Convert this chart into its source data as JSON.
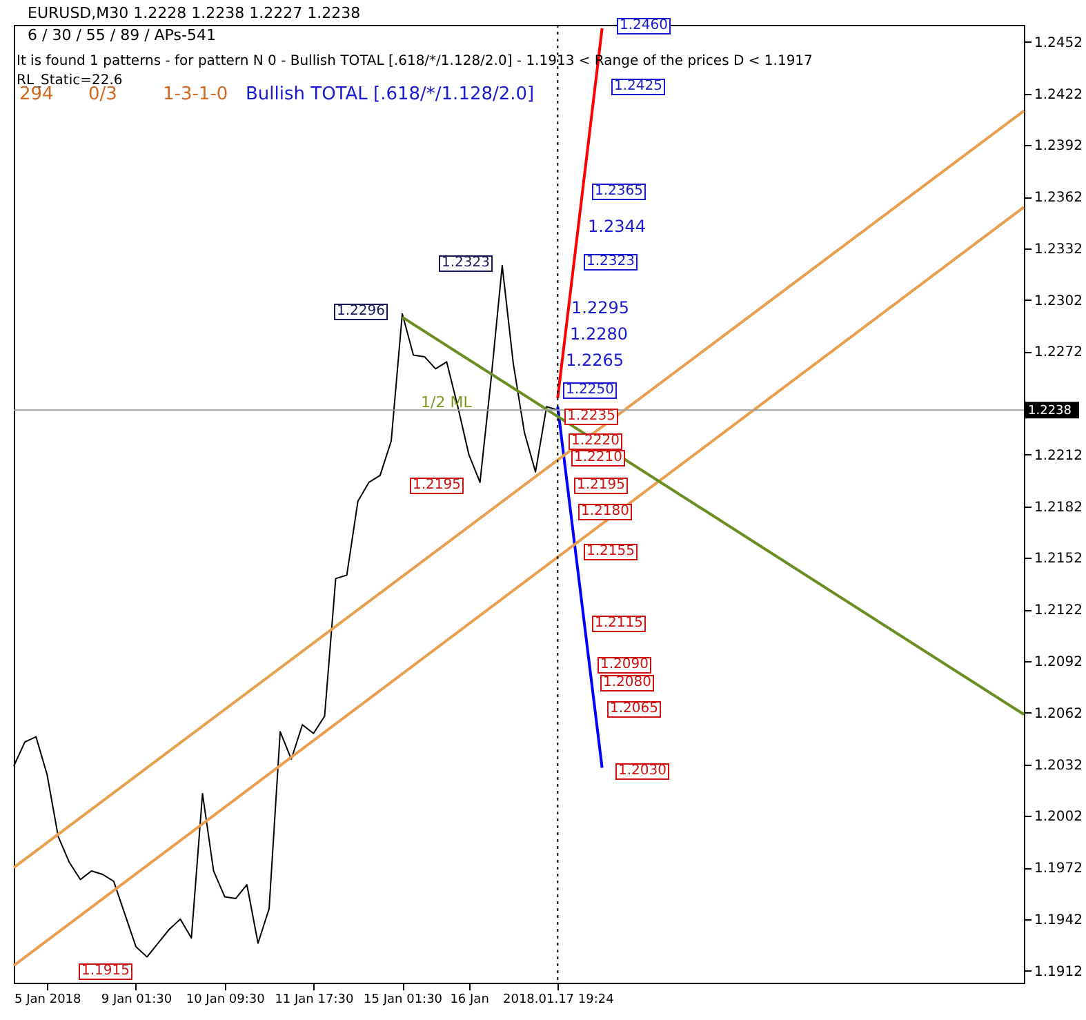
{
  "chart_data": {
    "type": "line",
    "title": "EURUSD,M30  1.2228 1.2238 1.2227 1.2238",
    "subtitle": "6 / 30 / 55 / 89 / APs-541",
    "annotations": [
      "It is found 1 patterns  -  for pattern N 0 - Bullish TOTAL [.618/*/1.128/2.0] - 1.1913 < Range of the prices D < 1.1917",
      "RL_Static=22.6",
      "294",
      "0/3",
      "1-3-1-0",
      "Bullish TOTAL [.618/*/1.128/2.0]",
      "1.2460",
      "1.2425",
      "1.2365",
      "1.2344",
      "1.2323",
      "1.2295",
      "1.2280",
      "1.2265",
      "1.2250",
      "1.2235",
      "1.2220",
      "1.2210",
      "1.2195",
      "1.2180",
      "1.2155",
      "1.2115",
      "1.2090",
      "1.2080",
      "1.2065",
      "1.2030",
      "1.2296",
      "1.2323",
      "1.2195",
      "1.1915",
      "1/2 ML"
    ],
    "categories": [
      null,
      null,
      null,
      "5 Jan 2018",
      null,
      null,
      null,
      null,
      null,
      null,
      null,
      "9 Jan 01:30",
      null,
      null,
      null,
      null,
      null,
      null,
      null,
      "10 Jan 09:30",
      null,
      null,
      null,
      null,
      null,
      null,
      null,
      "11 Jan 17:30",
      null,
      null,
      null,
      null,
      null,
      null,
      null,
      "15 Jan 01:30",
      null,
      null,
      null,
      null,
      null,
      "16 Jan",
      null,
      null,
      null,
      null,
      null,
      null,
      null,
      "2018.01.17 19:24",
      null,
      null,
      null,
      null,
      null,
      null,
      null,
      null,
      null,
      null,
      null,
      null,
      null,
      null,
      null,
      null,
      null,
      null,
      null,
      null,
      null,
      null,
      null,
      null,
      null,
      null,
      null,
      null,
      null,
      null,
      null,
      null,
      null,
      null,
      null,
      null,
      null,
      null,
      null,
      null,
      null,
      null
    ],
    "ylim": [
      1.1905,
      1.2462
    ],
    "yticks": [
      1.1912,
      1.1942,
      1.1972,
      1.2002,
      1.2032,
      1.2062,
      1.2092,
      1.2122,
      1.2152,
      1.2182,
      1.2212,
      1.2272,
      1.2302,
      1.2332,
      1.2362,
      1.2392,
      1.2422,
      1.2452
    ],
    "ref_lines": [
      {
        "axis": "y",
        "value": 1.2238,
        "label": "1.2238",
        "color": "#a0a0a0"
      },
      {
        "axis": "x",
        "value": "2018.01.17 19:24",
        "color": "#000000",
        "line_style": "dotted"
      }
    ],
    "series": [
      {
        "color": "#000000",
        "values": [
          1.2031,
          1.2045,
          1.2048,
          1.2026,
          1.199,
          1.1975,
          1.1965,
          1.197,
          1.1968,
          1.1964,
          1.1945,
          1.1926,
          1.192,
          1.1928,
          1.1936,
          1.1942,
          1.1931,
          1.2015,
          1.197,
          1.1955,
          1.1954,
          1.1962,
          1.1928,
          1.1948,
          1.2051,
          1.2035,
          1.2055,
          1.205,
          1.206,
          1.214,
          1.2142,
          1.2185,
          1.2196,
          1.22,
          1.222,
          1.2294,
          1.227,
          1.2269,
          1.2262,
          1.2266,
          1.224,
          1.2212,
          1.2196,
          1.2256,
          1.2322,
          1.2265,
          1.2225,
          1.2202,
          1.224,
          1.2238,
          null,
          null,
          null,
          null,
          null,
          null,
          null,
          null,
          null,
          null,
          null,
          null,
          null,
          null,
          null,
          null,
          null,
          null,
          null,
          null,
          null,
          null,
          null,
          null,
          null,
          null,
          null,
          null,
          null,
          null,
          null,
          null,
          null,
          null,
          null,
          null,
          null,
          null,
          null,
          null,
          null,
          null
        ]
      },
      {
        "color": "#ff0000",
        "values": [
          null,
          null,
          null,
          null,
          null,
          null,
          null,
          null,
          null,
          null,
          null,
          null,
          null,
          null,
          null,
          null,
          null,
          null,
          null,
          null,
          null,
          null,
          null,
          null,
          null,
          null,
          null,
          null,
          null,
          null,
          null,
          null,
          null,
          null,
          null,
          null,
          null,
          null,
          null,
          null,
          null,
          null,
          null,
          null,
          null,
          null,
          null,
          null,
          null,
          1.2245,
          null,
          null,
          null,
          1.246,
          null,
          null,
          null,
          null,
          null,
          null,
          null,
          null,
          null,
          null,
          null,
          null,
          null,
          null,
          null,
          null,
          null,
          null,
          null,
          null,
          null,
          null,
          null,
          null,
          null,
          null,
          null,
          null,
          null,
          null,
          null,
          null,
          null,
          null,
          null,
          null,
          null,
          null
        ]
      },
      {
        "color": "#0000ff",
        "values": [
          null,
          null,
          null,
          null,
          null,
          null,
          null,
          null,
          null,
          null,
          null,
          null,
          null,
          null,
          null,
          null,
          null,
          null,
          null,
          null,
          null,
          null,
          null,
          null,
          null,
          null,
          null,
          null,
          null,
          null,
          null,
          null,
          null,
          null,
          null,
          null,
          null,
          null,
          null,
          null,
          null,
          null,
          null,
          null,
          null,
          null,
          null,
          null,
          null,
          1.224,
          null,
          null,
          null,
          1.203,
          null,
          null,
          null,
          null,
          null,
          null,
          null,
          null,
          null,
          null,
          null,
          null,
          null,
          null,
          null,
          null,
          null,
          null,
          null,
          null,
          null,
          null,
          null,
          null,
          null,
          null,
          null,
          null,
          null,
          null,
          null,
          null,
          null,
          null,
          null,
          null,
          null,
          null
        ]
      },
      {
        "color": "#e8a050",
        "values": [
          1.1972,
          null,
          null,
          null,
          null,
          null,
          null,
          null,
          null,
          null,
          null,
          null,
          null,
          null,
          null,
          null,
          null,
          null,
          null,
          null,
          null,
          null,
          null,
          null,
          null,
          null,
          null,
          null,
          null,
          null,
          null,
          null,
          null,
          null,
          null,
          null,
          null,
          null,
          null,
          null,
          null,
          null,
          null,
          null,
          null,
          null,
          null,
          null,
          null,
          null,
          null,
          null,
          null,
          null,
          null,
          null,
          null,
          null,
          null,
          null,
          null,
          null,
          null,
          null,
          null,
          null,
          null,
          null,
          null,
          null,
          null,
          null,
          null,
          null,
          null,
          null,
          null,
          null,
          null,
          null,
          null,
          null,
          null,
          null,
          null,
          null,
          null,
          null,
          null,
          null,
          null,
          1.2412
        ]
      },
      {
        "color": "#e8a050",
        "values": [
          1.1915,
          null,
          null,
          null,
          null,
          null,
          null,
          null,
          null,
          null,
          null,
          null,
          null,
          null,
          null,
          null,
          null,
          null,
          null,
          null,
          null,
          null,
          null,
          null,
          null,
          null,
          null,
          null,
          null,
          null,
          null,
          null,
          null,
          null,
          null,
          null,
          null,
          null,
          null,
          null,
          null,
          null,
          null,
          null,
          null,
          null,
          null,
          null,
          null,
          null,
          null,
          null,
          null,
          null,
          null,
          null,
          null,
          null,
          null,
          null,
          null,
          null,
          null,
          null,
          null,
          null,
          null,
          null,
          null,
          null,
          null,
          null,
          null,
          null,
          null,
          null,
          null,
          null,
          null,
          null,
          null,
          null,
          null,
          null,
          null,
          null,
          null,
          null,
          null,
          null,
          null,
          1.2356
        ]
      },
      {
        "color": "#6b8e23",
        "values": [
          null,
          null,
          null,
          null,
          null,
          null,
          null,
          null,
          null,
          null,
          null,
          null,
          null,
          null,
          null,
          null,
          null,
          null,
          null,
          null,
          null,
          null,
          null,
          null,
          null,
          null,
          null,
          null,
          null,
          null,
          null,
          null,
          null,
          null,
          null,
          1.2292,
          null,
          null,
          null,
          null,
          null,
          null,
          null,
          null,
          null,
          null,
          null,
          null,
          null,
          null,
          null,
          null,
          null,
          null,
          null,
          null,
          null,
          null,
          null,
          null,
          null,
          null,
          null,
          null,
          null,
          null,
          null,
          null,
          null,
          null,
          null,
          null,
          null,
          null,
          null,
          null,
          null,
          null,
          null,
          null,
          null,
          null,
          null,
          null,
          null,
          null,
          null,
          null,
          null,
          null,
          null,
          1.2061
        ]
      }
    ]
  }
}
